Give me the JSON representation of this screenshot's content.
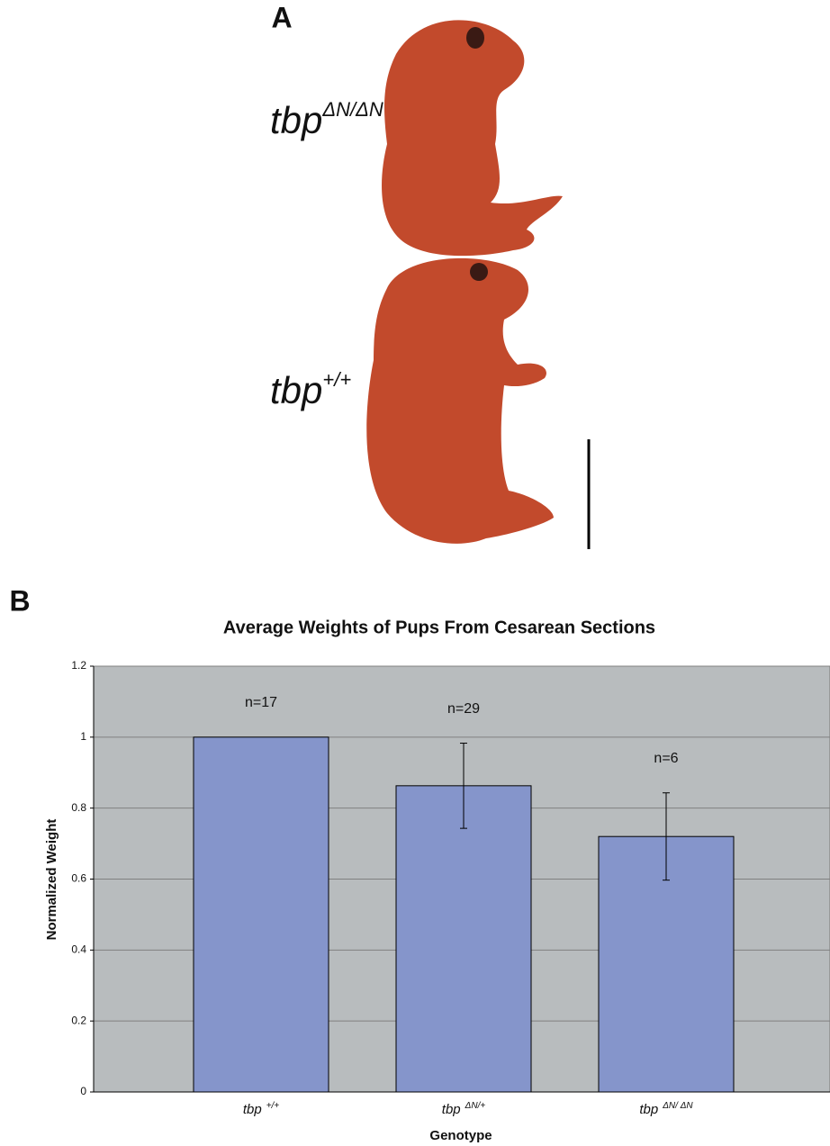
{
  "panel_a": {
    "label": "A",
    "labels": [
      {
        "text": "tbp",
        "superscript": "ΔN/ΔN"
      },
      {
        "text": "tbp",
        "superscript": "+/+"
      }
    ]
  },
  "chart_data": {
    "type": "bar",
    "panel_label": "B",
    "title": "Average Weights of Pups From Cesarean Sections",
    "x_label": "Genotype",
    "y_label": "Normalized Weight",
    "categories": [
      {
        "text": "tbp",
        "superscript": "+/+"
      },
      {
        "text": "tbp",
        "superscript": "ΔN/+"
      },
      {
        "text": "tbp",
        "superscript": "ΔN/ ΔN"
      }
    ],
    "values": [
      1.0,
      0.863,
      0.72
    ],
    "errors": [
      0,
      0.12,
      0.123
    ],
    "annotations": [
      "n=17",
      "n=29",
      "n=6"
    ],
    "color": "#8595cb",
    "background": "#b8bcbe",
    "ylim": [
      0,
      1.2
    ],
    "yticks": [
      0,
      0.2,
      0.4,
      0.6,
      0.8,
      1,
      1.2
    ],
    "grid": true
  }
}
